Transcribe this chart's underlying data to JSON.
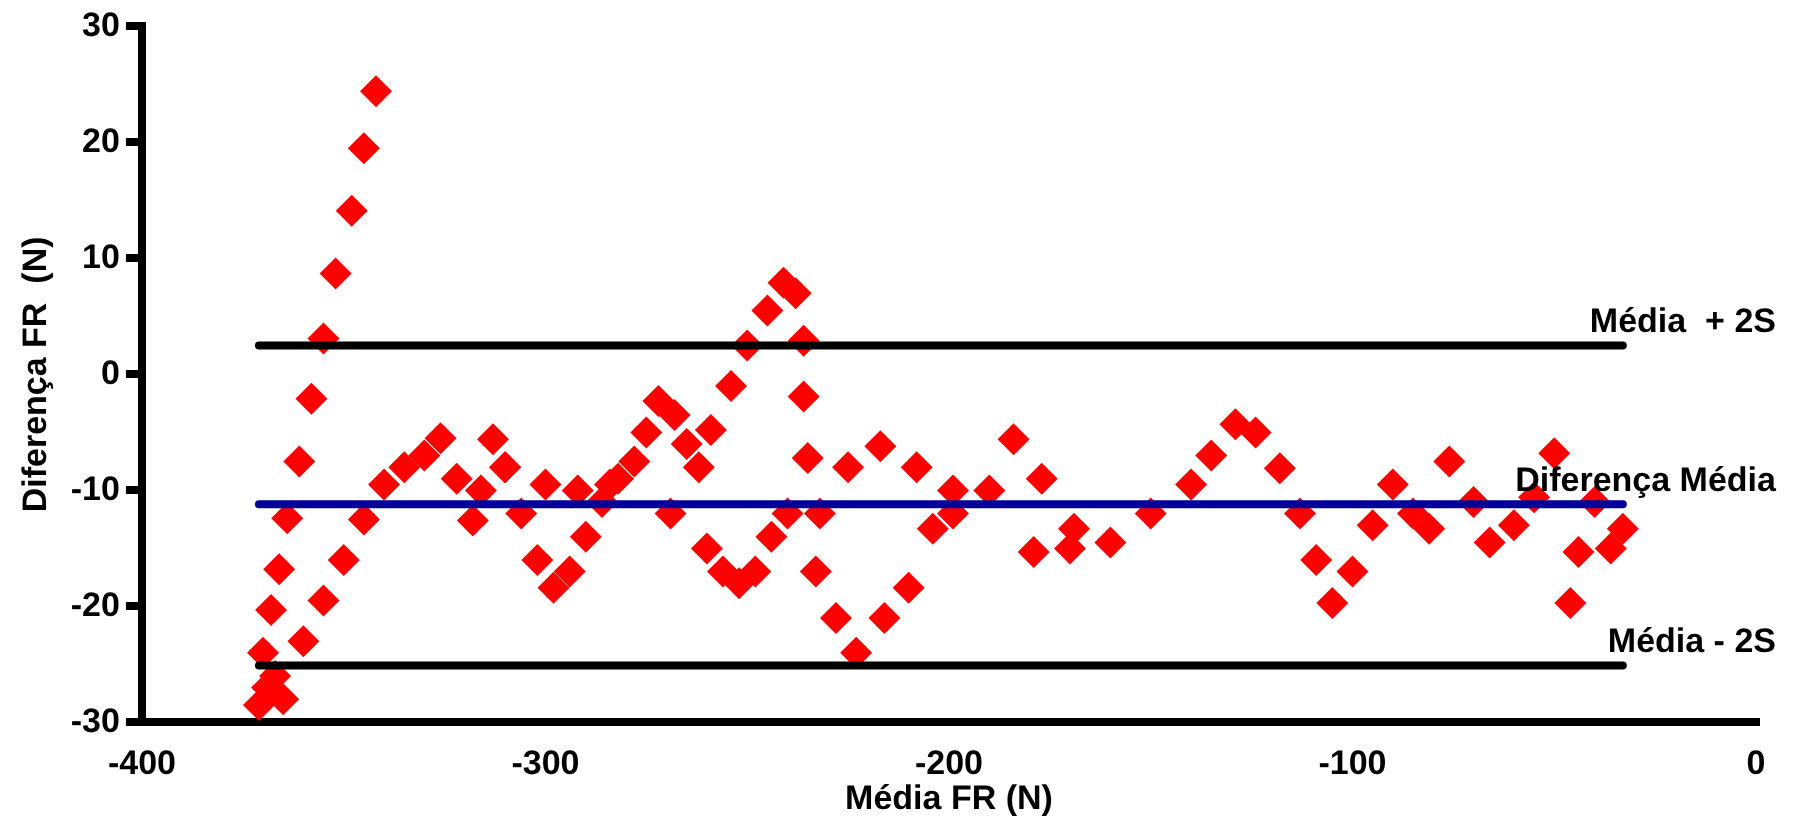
{
  "chart_data": {
    "type": "scatter",
    "xlabel": "Média FR (N)",
    "ylabel": "Diferença FR  (N)",
    "x": [
      -342,
      -345,
      -348,
      -352,
      -355,
      -358,
      -361,
      -364,
      -366,
      -368,
      -370,
      -371,
      -369,
      -367,
      -365,
      -360,
      -355,
      -350,
      -345,
      -340,
      -335,
      -330,
      -326,
      -322,
      -318,
      -313,
      -310,
      -306,
      -302,
      -298,
      -294,
      -290,
      -286,
      -282,
      -278,
      -275,
      -272,
      -268,
      -265,
      -262,
      -269,
      -260,
      -256,
      -252,
      -248,
      -259,
      -254,
      -250,
      -245,
      -241,
      -238,
      -236,
      -236,
      -235,
      -233,
      -228,
      -223,
      -216,
      -210,
      -204,
      -199,
      -244,
      -240,
      -232,
      -225,
      -217,
      -208,
      -199,
      -190,
      -184,
      -177,
      -169,
      -179,
      -170,
      -160,
      -150,
      -140,
      -135,
      -129,
      -124,
      -118,
      -113,
      -109,
      -105,
      -100,
      -95,
      -90,
      -85,
      -81,
      -76,
      -70,
      -66,
      -60,
      -55,
      -50,
      -46,
      -44,
      -40,
      -36,
      -33,
      -300,
      -292,
      -284,
      -310,
      -316
    ],
    "values": [
      24.4,
      19.5,
      14.1,
      8.7,
      3.1,
      -2.1,
      -7.5,
      -12.4,
      -16.8,
      -20.3,
      -24,
      -28.5,
      -27,
      -26,
      -28,
      -23,
      -19.5,
      -16,
      -12.5,
      -9.5,
      -8,
      -7,
      -5.5,
      -9,
      -12.6,
      -5.6,
      -8,
      -12,
      -16,
      -18.4,
      -17,
      -14,
      -11,
      -9,
      -7.5,
      -5,
      -2.3,
      -3.5,
      -6,
      -8,
      -12,
      -15,
      -17,
      -18,
      -17,
      -4.8,
      -1,
      2.5,
      5.5,
      7.9,
      7,
      2.9,
      -1.9,
      -7.2,
      -17,
      -21,
      -24,
      -21,
      -18.4,
      -13.3,
      -10,
      -14,
      -12,
      -12,
      -8,
      -6.2,
      -8,
      -12,
      -10,
      -5.6,
      -9,
      -13.3,
      -15.3,
      -15,
      -14.5,
      -12,
      -9.5,
      -7,
      -4.3,
      -5,
      -8.1,
      -12,
      -16,
      -19.7,
      -17,
      -13,
      -9.5,
      -12,
      -13.3,
      -7.5,
      -11,
      -14.5,
      -13,
      -10.6,
      -6.8,
      -19.7,
      -15.3,
      -11,
      -15,
      -13.3,
      -9.5,
      -10,
      -9.5,
      -8,
      -10
    ],
    "color": "#ff0000",
    "marker": "diamond",
    "xlim": [
      -400,
      0
    ],
    "xticks": [
      -400,
      -300,
      -200,
      -100,
      0
    ],
    "ylim": [
      -30,
      30
    ],
    "yticks": [
      -30,
      -20,
      -10,
      0,
      10,
      20,
      30
    ],
    "grid": false,
    "legend": false,
    "ref_lines": [
      {
        "axis": "y",
        "value": 2.5,
        "label": "Média  + 2S",
        "color": "#000000"
      },
      {
        "axis": "y",
        "value": -11.2,
        "label": "Diferença Média",
        "color": "#000099"
      },
      {
        "axis": "y",
        "value": -25.1,
        "label": "Média - 2S",
        "color": "#000000"
      }
    ]
  }
}
